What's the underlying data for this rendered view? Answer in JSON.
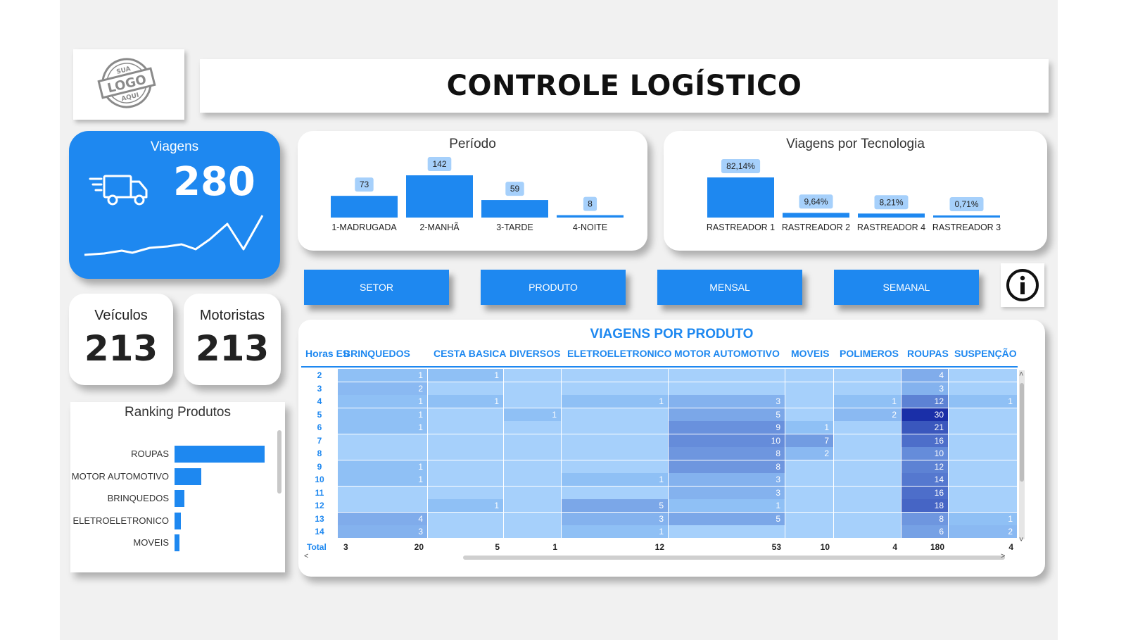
{
  "header": {
    "title": "CONTROLE LOGÍSTICO",
    "logo": {
      "top": "SUA",
      "mid": "LOGO",
      "bottom": "AQUI"
    }
  },
  "kpis": {
    "viagens": {
      "label": "Viagens",
      "value": "280"
    },
    "veiculos": {
      "label": "Veículos",
      "value": "213"
    },
    "motoristas": {
      "label": "Motoristas",
      "value": "213"
    }
  },
  "periodo_chart": {
    "title": "Período",
    "chart_data": {
      "type": "bar",
      "categories": [
        "1-MADRUGADA",
        "2-MANHÃ",
        "3-TARDE",
        "4-NOITE"
      ],
      "values": [
        73,
        142,
        59,
        8
      ],
      "data_labels": [
        "73",
        "142",
        "59",
        "8"
      ]
    }
  },
  "tecnologia_chart": {
    "title": "Viagens por Tecnologia",
    "chart_data": {
      "type": "bar",
      "categories": [
        "RASTREADOR 1",
        "RASTREADOR 2",
        "RASTREADOR 4",
        "RASTREADOR 3"
      ],
      "values": [
        82.14,
        9.64,
        8.21,
        0.71
      ],
      "data_labels": [
        "82,14%",
        "9,64%",
        "8,21%",
        "0,71%"
      ]
    }
  },
  "buttons": {
    "setor": "SETOR",
    "produto": "PRODUTO",
    "mensal": "MENSAL",
    "semanal": "SEMANAL",
    "info": "info-icon"
  },
  "table": {
    "title": "VIAGENS POR PRODUTO",
    "columns": [
      "Horas ES",
      "BRINQUEDOS",
      "CESTA BASICA",
      "DIVERSOS",
      "ELETROELETRONICO",
      "MOTOR AUTOMOTIVO",
      "MOVEIS",
      "POLIMEROS",
      "ROUPAS",
      "SUSPENÇÃO"
    ],
    "rows": [
      {
        "hour": "2",
        "values": [
          "",
          "1",
          "1",
          "",
          "",
          "",
          "",
          "",
          "4",
          ""
        ]
      },
      {
        "hour": "3",
        "values": [
          "",
          "2",
          "",
          "",
          "",
          "",
          "",
          "",
          "3",
          ""
        ]
      },
      {
        "hour": "4",
        "values": [
          "",
          "1",
          "1",
          "",
          "1",
          "3",
          "",
          "1",
          "12",
          "1"
        ]
      },
      {
        "hour": "5",
        "values": [
          "",
          "1",
          "",
          "1",
          "",
          "5",
          "",
          "2",
          "30",
          ""
        ]
      },
      {
        "hour": "6",
        "values": [
          "1",
          "1",
          "",
          "",
          "",
          "9",
          "1",
          "",
          "21",
          ""
        ]
      },
      {
        "hour": "7",
        "values": [
          "",
          "",
          "",
          "",
          "",
          "10",
          "7",
          "",
          "16",
          ""
        ]
      },
      {
        "hour": "8",
        "values": [
          "",
          "",
          "",
          "",
          "",
          "8",
          "2",
          "",
          "10",
          ""
        ]
      },
      {
        "hour": "9",
        "values": [
          "",
          "1",
          "",
          "",
          "",
          "8",
          "",
          "",
          "12",
          ""
        ]
      },
      {
        "hour": "10",
        "values": [
          "",
          "1",
          "",
          "",
          "1",
          "3",
          "",
          "",
          "14",
          ""
        ]
      },
      {
        "hour": "11",
        "values": [
          "",
          "",
          "",
          "",
          "",
          "3",
          "",
          "",
          "16",
          ""
        ]
      },
      {
        "hour": "12",
        "values": [
          "",
          "",
          "1",
          "",
          "5",
          "1",
          "",
          "",
          "18",
          ""
        ]
      },
      {
        "hour": "13",
        "values": [
          "",
          "4",
          "",
          "",
          "3",
          "5",
          "",
          "",
          "8",
          "1"
        ]
      },
      {
        "hour": "14",
        "values": [
          "",
          "3",
          "",
          "",
          "1",
          "",
          "",
          "",
          "6",
          "2"
        ]
      }
    ],
    "total": {
      "label": "Total",
      "values": [
        "3",
        "20",
        "5",
        "1",
        "12",
        "53",
        "10",
        "4",
        "180",
        "4"
      ]
    },
    "scroll": {
      "up": "˄",
      "down": "˅",
      "left": "<",
      "right": ">"
    }
  },
  "ranking": {
    "title": "Ranking Produtos",
    "chart_data": {
      "type": "bar",
      "orientation": "horizontal",
      "categories": [
        "ROUPAS",
        "MOTOR AUTOMOTIVO",
        "BRINQUEDOS",
        "ELETROELETRONICO",
        "MOVEIS"
      ],
      "values": [
        180,
        53,
        20,
        12,
        10
      ]
    }
  },
  "colors": {
    "accent": "#1e88f0",
    "heat_max": "#1a2fa8",
    "heat_min": "#a6d0fb"
  }
}
